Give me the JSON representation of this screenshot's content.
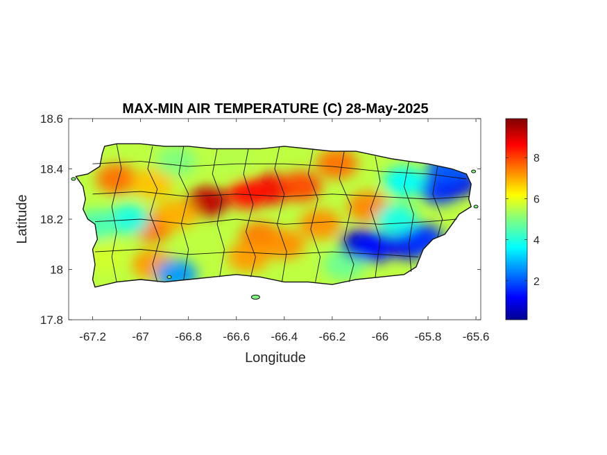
{
  "chart_data": {
    "type": "heatmap",
    "title": "MAX-MIN AIR TEMPERATURE (C) 28-May-2025",
    "xlabel": "Longitude",
    "ylabel": "Latitude",
    "xlim": [
      -67.3,
      -65.58
    ],
    "ylim": [
      17.8,
      18.6
    ],
    "xticks": [
      -67.2,
      -67,
      -66.8,
      -66.6,
      -66.4,
      -66.2,
      -66,
      -65.8,
      -65.6
    ],
    "xtick_labels": [
      "-67.2",
      "-67",
      "-66.8",
      "-66.6",
      "-66.4",
      "-66.2",
      "-66",
      "-65.8",
      "-65.6"
    ],
    "yticks": [
      17.8,
      18,
      18.2,
      18.4,
      18.6
    ],
    "ytick_labels": [
      "17.8",
      "18",
      "18.2",
      "18.4",
      "18.6"
    ],
    "colorbar": {
      "colormap": "jet",
      "range": [
        0.1,
        9.9
      ],
      "ticks": [
        2,
        4,
        6,
        8
      ],
      "tick_labels": [
        "2",
        "4",
        "6",
        "8"
      ]
    },
    "hotspots": [
      {
        "lon": -66.72,
        "lat": 18.27,
        "value": 9.3
      },
      {
        "lon": -66.45,
        "lat": 18.32,
        "value": 8.8
      },
      {
        "lon": -66.55,
        "lat": 18.3,
        "value": 8.6
      },
      {
        "lon": -66.33,
        "lat": 18.33,
        "value": 8.0
      },
      {
        "lon": -66.5,
        "lat": 18.13,
        "value": 7.5
      },
      {
        "lon": -66.4,
        "lat": 18.1,
        "value": 7.3
      },
      {
        "lon": -66.55,
        "lat": 18.05,
        "value": 7.2
      },
      {
        "lon": -66.25,
        "lat": 18.18,
        "value": 7.3
      },
      {
        "lon": -66.18,
        "lat": 18.42,
        "value": 7.6
      },
      {
        "lon": -66.05,
        "lat": 18.25,
        "value": 7.4
      },
      {
        "lon": -67.1,
        "lat": 18.36,
        "value": 7.6
      },
      {
        "lon": -66.95,
        "lat": 18.34,
        "value": 6.8
      },
      {
        "lon": -66.95,
        "lat": 18.17,
        "value": 7.6
      },
      {
        "lon": -66.85,
        "lat": 18.22,
        "value": 7.0
      },
      {
        "lon": -66.95,
        "lat": 18.02,
        "value": 7.2
      },
      {
        "lon": -67.15,
        "lat": 18.05,
        "value": 5.8
      },
      {
        "lon": -66.85,
        "lat": 18.43,
        "value": 5.0
      },
      {
        "lon": -66.62,
        "lat": 18.44,
        "value": 5.5
      },
      {
        "lon": -67.05,
        "lat": 18.2,
        "value": 4.0
      },
      {
        "lon": -67.18,
        "lat": 18.18,
        "value": 4.5
      },
      {
        "lon": -66.15,
        "lat": 18.02,
        "value": 4.8
      },
      {
        "lon": -66.08,
        "lat": 18.1,
        "value": 0.8
      },
      {
        "lon": -66.02,
        "lat": 18.09,
        "value": 1.5
      },
      {
        "lon": -65.88,
        "lat": 18.1,
        "value": 1.2
      },
      {
        "lon": -65.82,
        "lat": 18.12,
        "value": 1.8
      },
      {
        "lon": -65.75,
        "lat": 18.32,
        "value": 1.8
      },
      {
        "lon": -65.68,
        "lat": 18.35,
        "value": 1.2
      },
      {
        "lon": -65.72,
        "lat": 18.4,
        "value": 2.2
      },
      {
        "lon": -65.9,
        "lat": 18.35,
        "value": 3.8
      },
      {
        "lon": -65.93,
        "lat": 18.2,
        "value": 4.0
      },
      {
        "lon": -66.85,
        "lat": 17.98,
        "value": 2.8
      }
    ],
    "background_value": 5.6
  }
}
